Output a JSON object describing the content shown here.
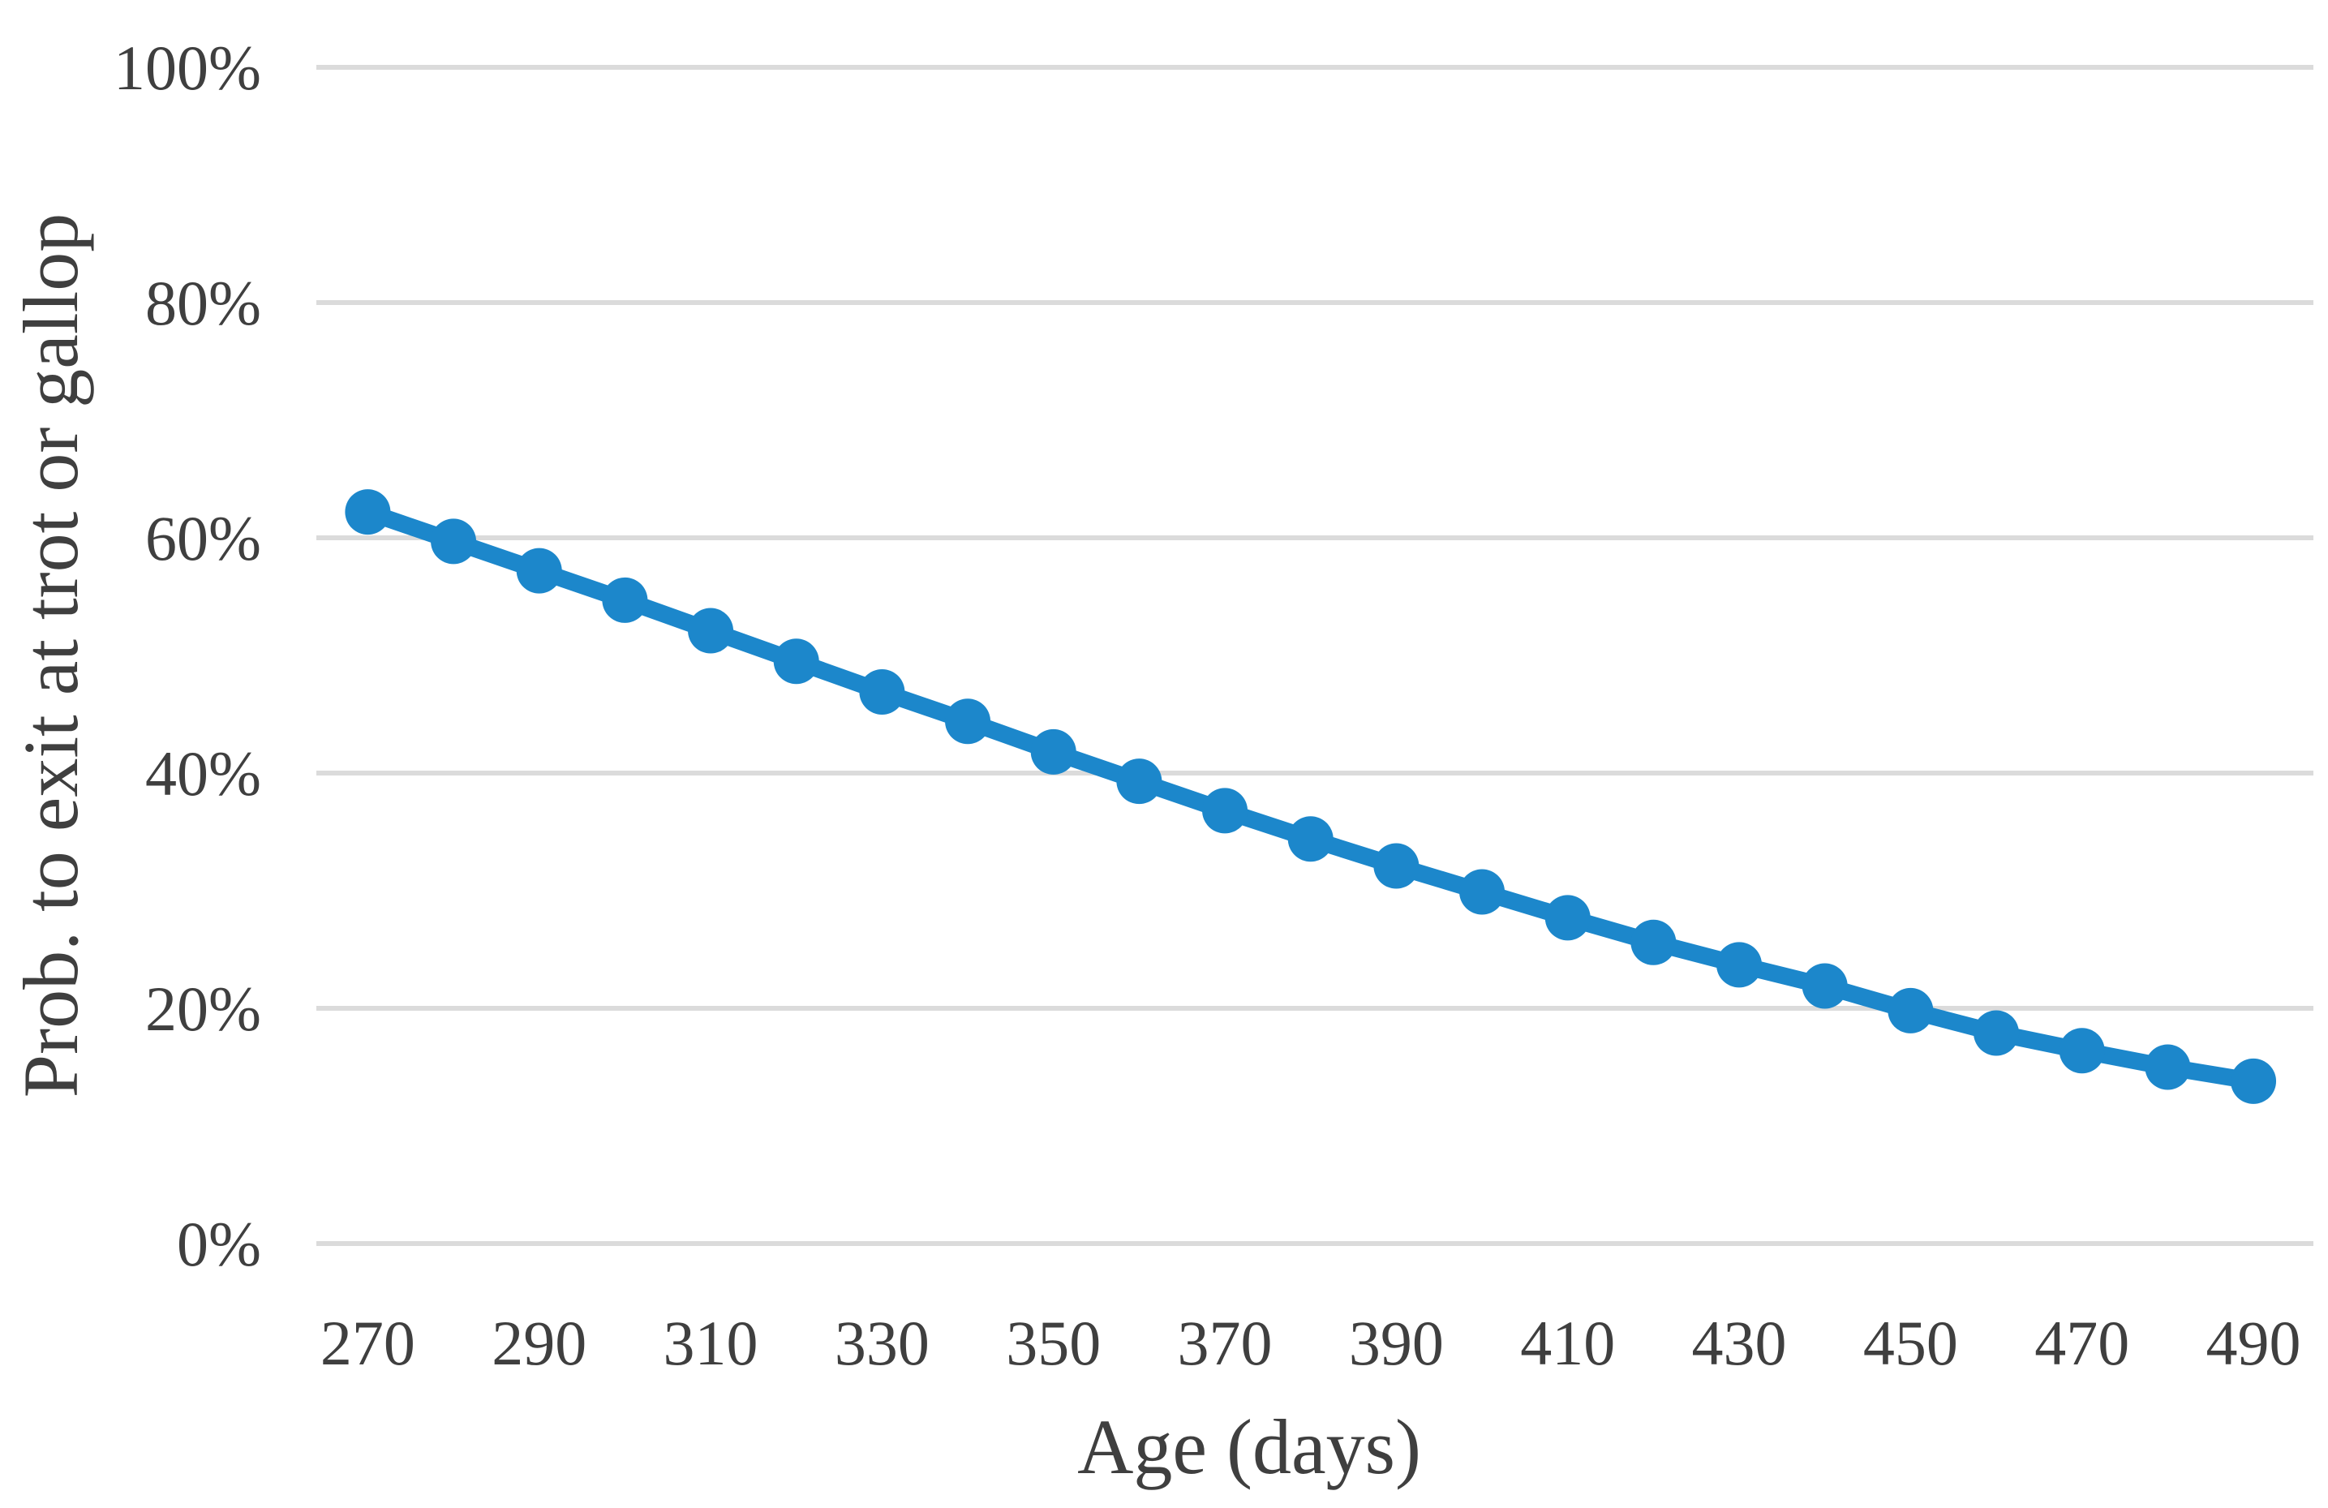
{
  "chart_data": {
    "type": "line",
    "title": "",
    "xlabel": "Age (days)",
    "ylabel": "Prob. to exit at trot or gallop",
    "x": [
      270,
      280,
      290,
      300,
      310,
      320,
      330,
      340,
      350,
      360,
      370,
      380,
      390,
      400,
      410,
      420,
      430,
      440,
      450,
      460,
      470,
      480,
      490
    ],
    "series": [
      {
        "name": "Prob. to exit at trot or gallop",
        "values": [
          62.2,
          59.7,
          57.2,
          54.7,
          52.1,
          49.5,
          46.9,
          44.4,
          41.8,
          39.3,
          36.8,
          34.4,
          32.1,
          29.9,
          27.7,
          25.6,
          23.7,
          21.9,
          19.8,
          17.9,
          16.4,
          15.0,
          13.8
        ]
      }
    ],
    "xlim": [
      264,
      497
    ],
    "ylim": [
      0,
      100
    ],
    "x_ticks": [
      270,
      290,
      310,
      330,
      350,
      370,
      390,
      410,
      430,
      450,
      470,
      490
    ],
    "x_tick_labels": [
      "270",
      "290",
      "310",
      "330",
      "350",
      "370",
      "390",
      "410",
      "430",
      "450",
      "470",
      "490"
    ],
    "y_ticks": [
      0,
      20,
      40,
      60,
      80,
      100
    ],
    "y_tick_labels": [
      "0%",
      "20%",
      "40%",
      "60%",
      "80%",
      "100%"
    ],
    "grid": "horizontal-only",
    "legend": "none",
    "marker": "filled-circle",
    "colors": {
      "series_line": "#1C87CB",
      "gridline": "#DBDBDB",
      "axis_text": "#3F3F3F",
      "background": "#FFFFFF"
    }
  }
}
